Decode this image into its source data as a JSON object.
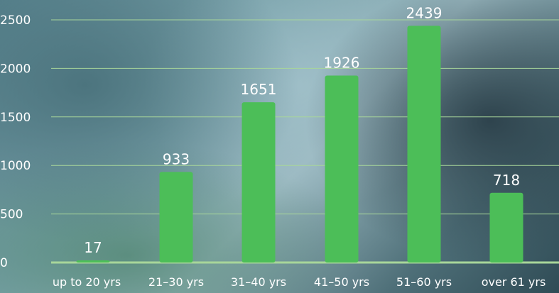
{
  "chart_data": {
    "type": "bar",
    "categories": [
      "up to 20 yrs",
      "21–30 yrs",
      "31–40 yrs",
      "41–50 yrs",
      "51–60 yrs",
      "over 61 yrs"
    ],
    "values": [
      17,
      933,
      1651,
      1926,
      2439,
      718
    ],
    "data_labels": [
      "17",
      "933",
      "1651",
      "1926",
      "2439",
      "718"
    ],
    "y_ticks": [
      "0",
      "500",
      "1000",
      "1500",
      "2000",
      "2500"
    ],
    "ylim": [
      0,
      2500
    ],
    "title": "",
    "xlabel": "",
    "ylabel": "",
    "grid": true,
    "legend": "none",
    "colors": {
      "bar": "#4cbe58",
      "grid": "#a8d69a",
      "text": "#ffffff"
    }
  }
}
